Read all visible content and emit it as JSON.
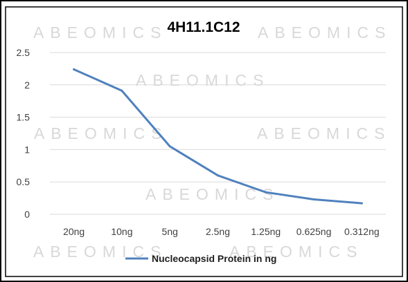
{
  "chart_data": {
    "type": "line",
    "title": "4H11.1C12",
    "watermark": "ABEOMICS",
    "categories": [
      "20ng",
      "10ng",
      "5ng",
      "2.5ng",
      "1.25ng",
      "0.625ng",
      "0.312ng"
    ],
    "series": [
      {
        "name": "Nucleocapsid Protein in ng",
        "values": [
          2.24,
          1.91,
          1.05,
          0.6,
          0.34,
          0.23,
          0.17
        ],
        "color": "#4f81bd"
      }
    ],
    "y_ticks": [
      "0",
      "0.5",
      "1",
      "1.5",
      "2",
      "2.5"
    ],
    "ylim": [
      0,
      2.5
    ],
    "grid": true,
    "legend_position": "bottom"
  }
}
